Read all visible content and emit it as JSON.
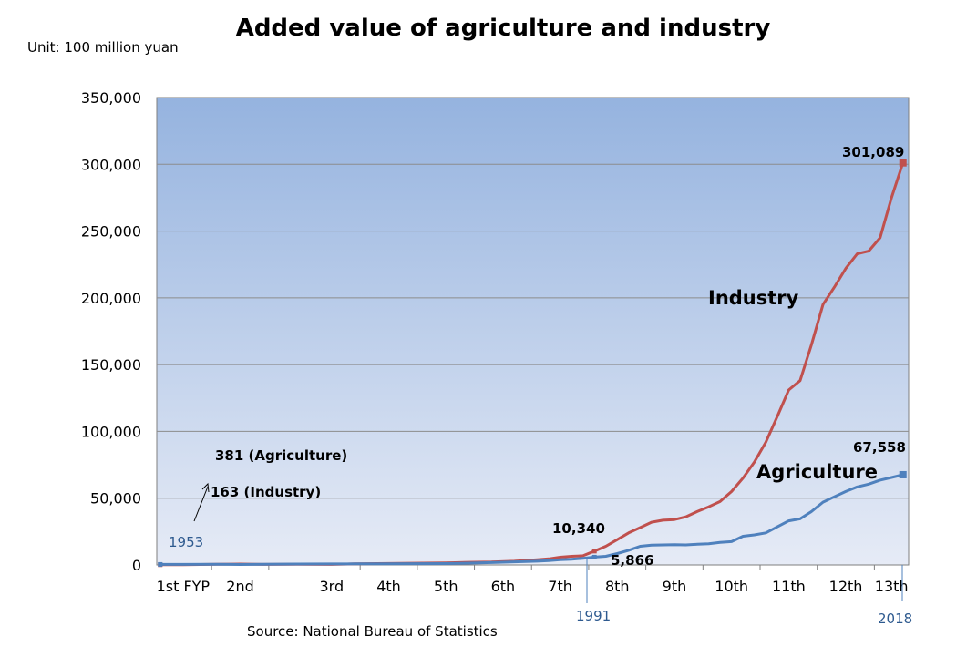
{
  "chart_data": {
    "type": "line",
    "title": "Added value of agriculture and industry",
    "unit": "Unit: 100 million yuan",
    "source": "Source: National Bureau of Statistics",
    "ylim": [
      0,
      350000
    ],
    "yticks": [
      0,
      50000,
      100000,
      150000,
      200000,
      250000,
      300000,
      350000
    ],
    "ytick_labels": [
      "0",
      "50,000",
      "100,000",
      "150,000",
      "200,000",
      "250,000",
      "300,000",
      "350,000"
    ],
    "xlim": [
      1952.7,
      2018.5
    ],
    "periods": [
      {
        "label": "1st FYP",
        "start": 1953,
        "end": 1957
      },
      {
        "label": "2nd",
        "start": 1958,
        "end": 1962
      },
      {
        "label": "3rd",
        "start": 1966,
        "end": 1970
      },
      {
        "label": "4th",
        "start": 1971,
        "end": 1975
      },
      {
        "label": "5th",
        "start": 1976,
        "end": 1980
      },
      {
        "label": "6th",
        "start": 1981,
        "end": 1985
      },
      {
        "label": "7th",
        "start": 1986,
        "end": 1990
      },
      {
        "label": "8th",
        "start": 1991,
        "end": 1995
      },
      {
        "label": "9th",
        "start": 1996,
        "end": 2000
      },
      {
        "label": "10th",
        "start": 2001,
        "end": 2005
      },
      {
        "label": "11th",
        "start": 2006,
        "end": 2010
      },
      {
        "label": "12th",
        "start": 2011,
        "end": 2015
      },
      {
        "label": "13th",
        "start": 2016,
        "end": 2018
      }
    ],
    "series": [
      {
        "name": "Industry",
        "color": "#c0504d",
        "x": [
          1953,
          1955,
          1958,
          1960,
          1962,
          1965,
          1968,
          1970,
          1972,
          1975,
          1978,
          1980,
          1982,
          1984,
          1986,
          1987,
          1988,
          1989,
          1990,
          1991,
          1992,
          1993,
          1994,
          1995,
          1996,
          1997,
          1998,
          1999,
          2000,
          2001,
          2002,
          2003,
          2004,
          2005,
          2006,
          2007,
          2008,
          2009,
          2010,
          2011,
          2012,
          2013,
          2014,
          2015,
          2016,
          2017,
          2018
        ],
        "values": [
          163,
          220,
          470,
          650,
          380,
          550,
          400,
          830,
          1000,
          1270,
          1600,
          1990,
          2160,
          2790,
          3970,
          4590,
          5780,
          6480,
          6860,
          10340,
          14000,
          19000,
          24000,
          28000,
          32000,
          33500,
          34000,
          36000,
          40000,
          43500,
          47500,
          55000,
          65000,
          77000,
          92000,
          111000,
          131000,
          138000,
          165000,
          195000,
          208000,
          222000,
          233000,
          235000,
          245000,
          275000,
          301089
        ]
      },
      {
        "name": "Agriculture",
        "color": "#4f81bd",
        "x": [
          1953,
          1955,
          1958,
          1960,
          1962,
          1965,
          1968,
          1970,
          1972,
          1975,
          1978,
          1980,
          1982,
          1984,
          1986,
          1987,
          1988,
          1989,
          1990,
          1991,
          1992,
          1993,
          1994,
          1995,
          1996,
          1997,
          1998,
          1999,
          2000,
          2001,
          2002,
          2003,
          2004,
          2005,
          2006,
          2007,
          2008,
          2009,
          2010,
          2011,
          2012,
          2013,
          2014,
          2015,
          2016,
          2017,
          2018
        ],
        "values": [
          381,
          420,
          450,
          340,
          450,
          650,
          720,
          800,
          830,
          970,
          1030,
          1360,
          1780,
          2300,
          2790,
          3230,
          3870,
          4230,
          4950,
          5866,
          6500,
          8500,
          11000,
          14000,
          14800,
          15000,
          15200,
          15000,
          15500,
          15900,
          16900,
          17500,
          21500,
          22500,
          24000,
          28500,
          33000,
          34500,
          40000,
          47000,
          51000,
          55000,
          58500,
          60500,
          63500,
          65500,
          67558
        ]
      }
    ],
    "annotations": {
      "industry_label": "Industry",
      "agriculture_label": "Agriculture",
      "industry_end_value": "301,089",
      "agriculture_end_value": "67,558",
      "industry_1991_value": "10,340",
      "agriculture_1991_value": "5,866",
      "agriculture_1953_note": "381 (Agriculture)",
      "industry_1953_note": "163 (Industry)",
      "year_1953": "1953",
      "year_1991": "1991",
      "year_2018": "2018"
    }
  }
}
